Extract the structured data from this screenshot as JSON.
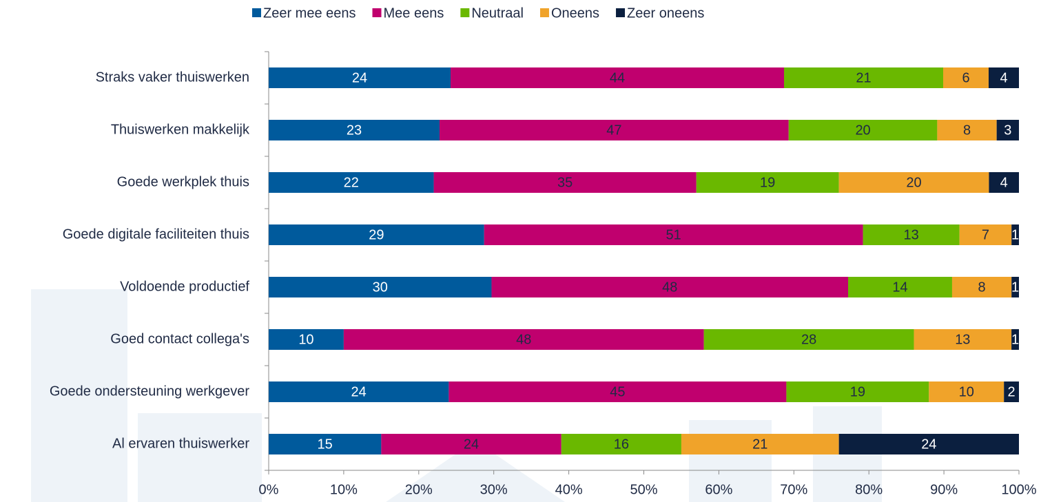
{
  "chart_data": {
    "type": "bar",
    "orientation": "horizontal",
    "stack": "percent",
    "categories": [
      "Straks vaker thuiswerken",
      "Thuiswerken makkelijk",
      "Goede werkplek thuis",
      "Goede digitale faciliteiten thuis",
      "Voldoende productief",
      "Goed contact collega's",
      "Goede ondersteuning werkgever",
      "Al ervaren thuiswerker"
    ],
    "series": [
      {
        "name": "Zeer mee eens",
        "color": "#005a9c",
        "label_color": "#ffffff",
        "values": [
          24,
          23,
          22,
          29,
          30,
          10,
          24,
          15
        ]
      },
      {
        "name": "Mee eens",
        "color": "#c0006e",
        "label_color": "#1f2a44",
        "values": [
          44,
          47,
          35,
          51,
          48,
          48,
          45,
          24
        ]
      },
      {
        "name": "Neutraal",
        "color": "#6ab800",
        "label_color": "#1f2a44",
        "values": [
          21,
          20,
          19,
          13,
          14,
          28,
          19,
          16
        ]
      },
      {
        "name": "Oneens",
        "color": "#f0a32a",
        "label_color": "#1f2a44",
        "values": [
          6,
          8,
          20,
          7,
          8,
          13,
          10,
          21
        ]
      },
      {
        "name": "Zeer oneens",
        "color": "#0b1f3f",
        "label_color": "#ffffff",
        "values": [
          4,
          3,
          4,
          1,
          1,
          1,
          2,
          24
        ]
      }
    ],
    "xlim": [
      0,
      100
    ],
    "xticks": [
      {
        "value": 0,
        "label": "0%"
      },
      {
        "value": 10,
        "label": "10%"
      },
      {
        "value": 20,
        "label": "20%"
      },
      {
        "value": 30,
        "label": "30%"
      },
      {
        "value": 40,
        "label": "40%"
      },
      {
        "value": 50,
        "label": "50%"
      },
      {
        "value": 60,
        "label": "60%"
      },
      {
        "value": 70,
        "label": "70%"
      },
      {
        "value": 80,
        "label": "80%"
      },
      {
        "value": 90,
        "label": "90%"
      },
      {
        "value": 100,
        "label": "100%"
      }
    ],
    "legend": "top"
  }
}
